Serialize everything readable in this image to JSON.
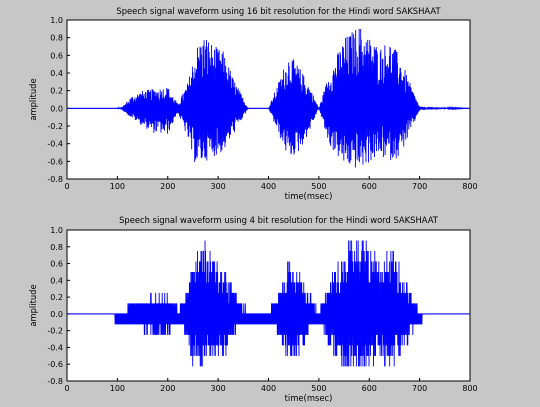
{
  "chart_data": [
    {
      "type": "line",
      "title": "Speech signal waveform using 16 bit resolution for the Hindi word SAKSHAAT",
      "xlabel": "time(msec)",
      "ylabel": "amplitude",
      "xlim": [
        0,
        800
      ],
      "ylim": [
        -0.8,
        1.0
      ],
      "xticks": [
        "0",
        "100",
        "200",
        "300",
        "400",
        "500",
        "600",
        "700",
        "800"
      ],
      "yticks": [
        "-0.8",
        "-0.6",
        "-0.4",
        "-0.2",
        "0.0",
        "0.2",
        "0.4",
        "0.6",
        "0.8",
        "1.0"
      ],
      "grid": false,
      "quantization": "continuous",
      "series_color": "#0000ff",
      "envelope": {
        "note": "approximate peak amplitude envelope of the waveform (time in msec, amplitude)",
        "t": [
          0,
          100,
          110,
          130,
          150,
          170,
          200,
          220,
          240,
          250,
          260,
          275,
          290,
          310,
          330,
          360,
          400,
          420,
          440,
          460,
          480,
          500,
          520,
          550,
          580,
          600,
          620,
          640,
          660,
          680,
          700,
          800
        ],
        "positive": [
          0.0,
          0.0,
          0.02,
          0.15,
          0.2,
          0.22,
          0.25,
          0.05,
          0.3,
          0.55,
          0.75,
          0.85,
          0.72,
          0.65,
          0.35,
          0.0,
          0.0,
          0.3,
          0.62,
          0.48,
          0.28,
          0.0,
          0.4,
          0.8,
          0.95,
          0.82,
          0.7,
          0.78,
          0.6,
          0.3,
          0.02,
          0.0
        ],
        "negative": [
          0.0,
          0.0,
          -0.02,
          -0.12,
          -0.2,
          -0.28,
          -0.3,
          -0.05,
          -0.35,
          -0.6,
          -0.65,
          -0.6,
          -0.55,
          -0.5,
          -0.3,
          0.0,
          0.0,
          -0.3,
          -0.58,
          -0.5,
          -0.28,
          0.0,
          -0.42,
          -0.65,
          -0.7,
          -0.62,
          -0.55,
          -0.6,
          -0.55,
          -0.3,
          -0.02,
          0.0
        ]
      }
    },
    {
      "type": "line",
      "title": "Speech signal waveform using 4 bit resolution for the Hindi word SAKSHAAT",
      "xlabel": "time(msec)",
      "ylabel": "amplitude",
      "xlim": [
        0,
        800
      ],
      "ylim": [
        -0.8,
        1.0
      ],
      "xticks": [
        "0",
        "100",
        "200",
        "300",
        "400",
        "500",
        "600",
        "700",
        "800"
      ],
      "yticks": [
        "-0.8",
        "-0.6",
        "-0.4",
        "-0.2",
        "0.0",
        "0.2",
        "0.4",
        "0.6",
        "0.8",
        "1.0"
      ],
      "grid": false,
      "quantization": "4-bit",
      "quant_levels": [
        -0.125,
        0.0
      ],
      "series_color": "#0000ff",
      "envelope": {
        "note": "approximate peak amplitude envelope of the waveform (time in msec, amplitude)",
        "t": [
          0,
          100,
          110,
          130,
          150,
          170,
          200,
          220,
          240,
          250,
          260,
          275,
          290,
          310,
          330,
          360,
          400,
          420,
          440,
          460,
          480,
          500,
          520,
          550,
          580,
          600,
          620,
          640,
          660,
          680,
          700,
          800
        ],
        "positive": [
          0.0,
          0.0,
          0.02,
          0.15,
          0.2,
          0.22,
          0.25,
          0.05,
          0.3,
          0.55,
          0.75,
          0.85,
          0.72,
          0.65,
          0.35,
          0.0,
          0.0,
          0.3,
          0.62,
          0.48,
          0.28,
          0.0,
          0.4,
          0.8,
          0.95,
          0.82,
          0.7,
          0.78,
          0.6,
          0.3,
          0.02,
          0.0
        ],
        "negative": [
          0.0,
          0.0,
          -0.02,
          -0.12,
          -0.2,
          -0.28,
          -0.3,
          -0.05,
          -0.35,
          -0.6,
          -0.65,
          -0.6,
          -0.55,
          -0.5,
          -0.3,
          0.0,
          0.0,
          -0.3,
          -0.58,
          -0.5,
          -0.28,
          0.0,
          -0.42,
          -0.65,
          -0.7,
          -0.62,
          -0.55,
          -0.6,
          -0.55,
          -0.3,
          -0.02,
          0.0
        ]
      }
    }
  ]
}
